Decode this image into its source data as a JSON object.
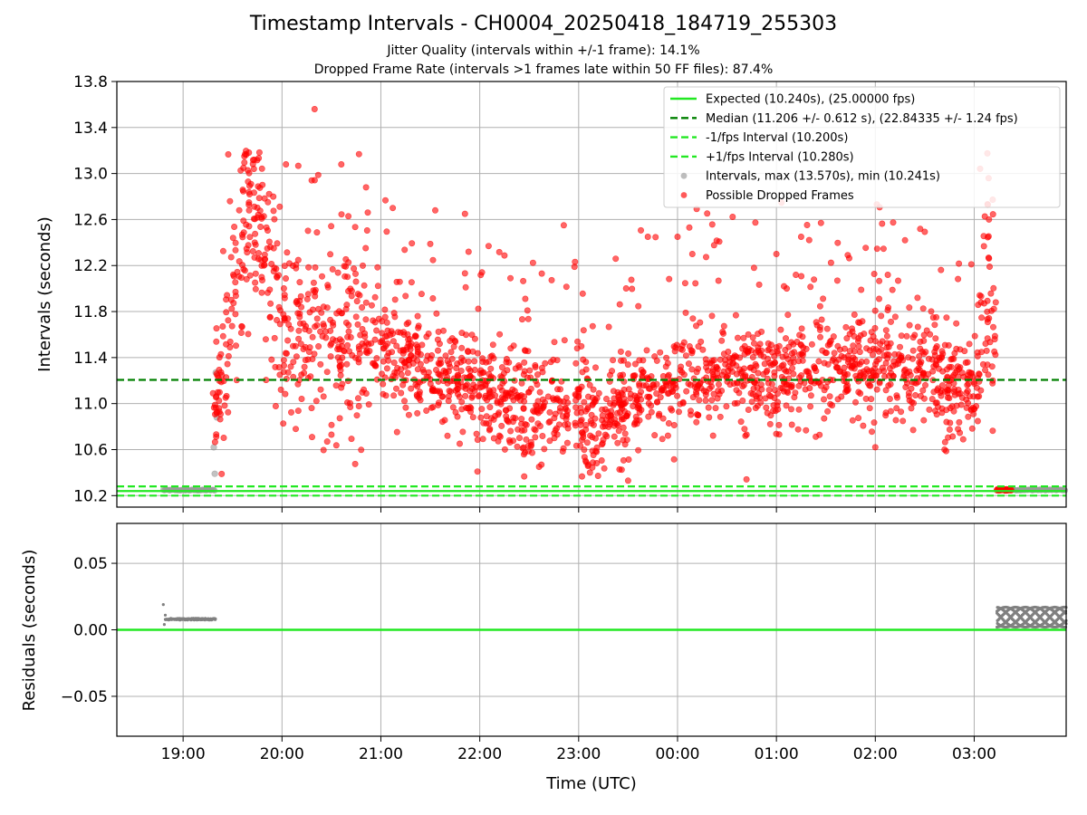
{
  "figure": {
    "title": "Timestamp Intervals - CH0004_20250418_184719_255303",
    "subtitle_jitter": "Jitter Quality (intervals within +/-1 frame): 14.1%",
    "subtitle_dropped": "Dropped Frame Rate (intervals >1 frames late within 50 FF files): 87.4%"
  },
  "colors": {
    "expected": "#22e822",
    "median": "#008000",
    "interval_band": "#22e822",
    "normal_point": "#999999",
    "dropped_point": "#ff0000",
    "residual_point": "#808080",
    "grid": "#b0b0b0"
  },
  "chart_data": [
    {
      "type": "scatter",
      "panel": "top",
      "xlabel": "",
      "ylabel": "Intervals (seconds)",
      "ylim": [
        10.1,
        13.8
      ],
      "xlim_hours": [
        18.33,
        27.93
      ],
      "x_ticks": [
        {
          "hour": 19,
          "label": "19:00"
        },
        {
          "hour": 20,
          "label": "20:00"
        },
        {
          "hour": 21,
          "label": "21:00"
        },
        {
          "hour": 22,
          "label": "22:00"
        },
        {
          "hour": 23,
          "label": "23:00"
        },
        {
          "hour": 24,
          "label": "00:00"
        },
        {
          "hour": 25,
          "label": "01:00"
        },
        {
          "hour": 26,
          "label": "02:00"
        },
        {
          "hour": 27,
          "label": "03:00"
        }
      ],
      "y_ticks": [
        "10.2",
        "10.6",
        "11.0",
        "11.4",
        "11.8",
        "12.2",
        "12.6",
        "13.0",
        "13.4",
        "13.8"
      ],
      "grid": true,
      "legend_position": "top-right",
      "reference_lines": [
        {
          "name": "Expected (10.240s), (25.00000 fps)",
          "y": 10.24,
          "style": "solid"
        },
        {
          "name": "Median (11.206 +/- 0.612 s), (22.84335 +/- 1.24 fps)",
          "y": 11.206,
          "style": "dashed"
        },
        {
          "name": "-1/fps Interval (10.200s)",
          "y": 10.2,
          "style": "dashed"
        },
        {
          "name": "+1/fps Interval (10.280s)",
          "y": 10.28,
          "style": "dashed"
        }
      ],
      "point_series": [
        {
          "name": "Intervals, max (13.570s), min (10.241s)",
          "max": 13.57,
          "min": 10.241
        },
        {
          "name": "Possible Dropped Frames"
        }
      ],
      "normal_segments": [
        {
          "x_start": 18.8,
          "x_end": 19.33,
          "y": 10.248
        },
        {
          "x_start": 27.3,
          "x_end": 27.93,
          "y": 10.25
        }
      ],
      "normal_outliers": [
        [
          19.33,
          11.27
        ],
        [
          19.31,
          10.62
        ],
        [
          19.32,
          10.39
        ],
        [
          19.34,
          10.88
        ]
      ],
      "dropped_series_trend": [
        [
          19.3,
          10.9
        ],
        [
          19.4,
          11.3
        ],
        [
          19.5,
          11.8
        ],
        [
          19.6,
          12.4
        ],
        [
          19.7,
          12.6
        ],
        [
          19.8,
          12.4
        ],
        [
          19.9,
          12.0
        ],
        [
          20.0,
          11.6
        ],
        [
          20.2,
          11.5
        ],
        [
          20.4,
          11.6
        ],
        [
          20.6,
          11.6
        ],
        [
          20.8,
          11.5
        ],
        [
          21.0,
          11.45
        ],
        [
          21.2,
          11.35
        ],
        [
          21.4,
          11.3
        ],
        [
          21.6,
          11.2
        ],
        [
          21.8,
          11.15
        ],
        [
          22.0,
          11.1
        ],
        [
          22.2,
          11.05
        ],
        [
          22.4,
          11.0
        ],
        [
          22.6,
          11.0
        ],
        [
          22.8,
          10.95
        ],
        [
          23.0,
          10.9
        ],
        [
          23.2,
          10.85
        ],
        [
          23.4,
          10.95
        ],
        [
          23.6,
          11.0
        ],
        [
          23.8,
          11.1
        ],
        [
          24.0,
          11.15
        ],
        [
          24.2,
          11.2
        ],
        [
          24.4,
          11.25
        ],
        [
          24.6,
          11.25
        ],
        [
          24.8,
          11.2
        ],
        [
          25.0,
          11.25
        ],
        [
          25.2,
          11.3
        ],
        [
          25.4,
          11.3
        ],
        [
          25.6,
          11.3
        ],
        [
          25.8,
          11.3
        ],
        [
          26.0,
          11.3
        ],
        [
          26.2,
          11.3
        ],
        [
          26.4,
          11.25
        ],
        [
          26.6,
          11.2
        ],
        [
          26.8,
          11.15
        ],
        [
          27.0,
          11.1
        ],
        [
          27.1,
          11.5
        ],
        [
          27.15,
          12.0
        ],
        [
          27.2,
          11.6
        ],
        [
          27.25,
          10.8
        ],
        [
          27.3,
          10.25
        ],
        [
          27.38,
          10.25
        ]
      ],
      "dropped_outliers": [
        [
          20.33,
          13.56
        ],
        [
          19.62,
          13.15
        ],
        [
          19.72,
          13.12
        ],
        [
          20.04,
          13.08
        ],
        [
          20.6,
          13.08
        ],
        [
          20.3,
          12.94
        ],
        [
          20.85,
          12.88
        ],
        [
          21.12,
          12.7
        ],
        [
          21.55,
          12.68
        ],
        [
          21.85,
          12.65
        ],
        [
          22.85,
          12.55
        ],
        [
          25.45,
          12.57
        ],
        [
          26.3,
          12.42
        ],
        [
          27.15,
          12.6
        ],
        [
          23.7,
          12.45
        ],
        [
          24.0,
          12.45
        ],
        [
          24.15,
          12.3
        ],
        [
          25.0,
          12.3
        ],
        [
          25.25,
          12.45
        ],
        [
          20.5,
          10.73
        ],
        [
          23.5,
          10.33
        ],
        [
          22.6,
          10.45
        ],
        [
          26.0,
          10.62
        ],
        [
          26.7,
          10.6
        ]
      ],
      "dropped_tail": {
        "x_start": 27.23,
        "x_end": 27.38,
        "y": 10.25
      }
    },
    {
      "type": "scatter",
      "panel": "bottom",
      "xlabel": "Time (UTC)",
      "ylabel": "Residuals (seconds)",
      "ylim": [
        -0.08,
        0.08
      ],
      "y_ticks": [
        "0.05",
        "0.00",
        "−0.05"
      ],
      "grid": true,
      "zero_line": 0.0,
      "segments": [
        {
          "x_start": 18.8,
          "x_end": 19.33,
          "y": 0.008,
          "spread": 0.0012
        },
        {
          "x_start": 27.23,
          "x_end": 27.93,
          "y_min": 0.002,
          "y_max": 0.017
        }
      ],
      "spikes": [
        [
          18.8,
          0.019
        ],
        [
          18.81,
          0.004
        ],
        [
          18.82,
          0.011
        ]
      ]
    }
  ]
}
